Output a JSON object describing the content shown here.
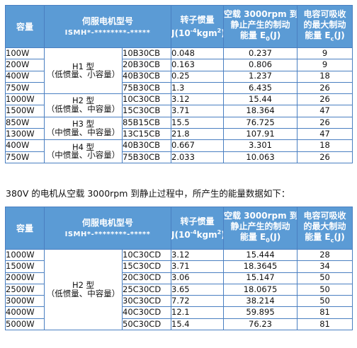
{
  "header": {
    "capacity": "容量",
    "model_title": "伺服电机型号",
    "model_code": "ISMH*-********-*****",
    "inertia_label": "转子惯量",
    "inertia_unit_prefix": "J(10",
    "inertia_exp": "-4",
    "inertia_unit_mid": "kgm",
    "inertia_exp2": "2",
    "inertia_unit_suffix": ")",
    "energy_line1": "空载 3000rpm 到",
    "energy_line2": "静止产生的制动",
    "energy_line3_prefix": "能量 E",
    "energy_sub": "0",
    "energy_line3_suffix": "(J)",
    "max_line1": "电容可吸收",
    "max_line2": "的最大制动",
    "max_line3_prefix": "能量 E",
    "max_sub": "c",
    "max_line3_suffix": "(J)"
  },
  "table1": {
    "series": [
      {
        "type": "H1 型",
        "desc": "（低惯量、小容量）"
      },
      {
        "type": "H2 型",
        "desc": "（低惯量、中容量）"
      },
      {
        "type": "H3 型",
        "desc": "（中惯量、中容量）"
      },
      {
        "type": "H4 型",
        "desc": "（中惯量、小容量）"
      }
    ],
    "rows": [
      {
        "capacity": "100W",
        "model": "10B30CB",
        "inertia": "0.048",
        "energy": "0.237",
        "max": "9"
      },
      {
        "capacity": "200W",
        "model": "20B30CB",
        "inertia": "0.163",
        "energy": "0.806",
        "max": "9"
      },
      {
        "capacity": "400W",
        "model": "40B30CB",
        "inertia": "0.25",
        "energy": "1.237",
        "max": "18"
      },
      {
        "capacity": "750W",
        "model": "75B30CB",
        "inertia": "1.3",
        "energy": "6.435",
        "max": "26"
      },
      {
        "capacity": "1000W",
        "model": "10C30CB",
        "inertia": "3.12",
        "energy": "15.44",
        "max": "26"
      },
      {
        "capacity": "1500W",
        "model": "15C30CB",
        "inertia": "3.71",
        "energy": "18.364",
        "max": "47"
      },
      {
        "capacity": "850W",
        "model": "85B15CB",
        "inertia": "15.5",
        "energy": "76.725",
        "max": "26"
      },
      {
        "capacity": "1300W",
        "model": "13C15CB",
        "inertia": "21.8",
        "energy": "107.91",
        "max": "47"
      },
      {
        "capacity": "400W",
        "model": "40B30CB",
        "inertia": "0.667",
        "energy": "3.301",
        "max": "18"
      },
      {
        "capacity": "750W",
        "model": "75B30CB",
        "inertia": "2.033",
        "energy": "10.063",
        "max": "26"
      }
    ]
  },
  "caption": "380V 的电机从空载 3000rpm 到静止过程中，所产生的能量数据如下：",
  "table2": {
    "series": [
      {
        "type": "H2 型",
        "desc": "（低惯量、中容量）"
      }
    ],
    "rows": [
      {
        "capacity": "1000W",
        "model": "10C30CD",
        "inertia": "3.12",
        "energy": "15.444",
        "max": "28"
      },
      {
        "capacity": "1500W",
        "model": "15C30CD",
        "inertia": "3.71",
        "energy": "18.3645",
        "max": "34"
      },
      {
        "capacity": "2000W",
        "model": "20C30CD",
        "inertia": "3.06",
        "energy": "15.147",
        "max": "50"
      },
      {
        "capacity": "2500W",
        "model": "25C30CD",
        "inertia": "3.65",
        "energy": "18.0675",
        "max": "50"
      },
      {
        "capacity": "3000W",
        "model": "30C30CD",
        "inertia": "7.72",
        "energy": "38.214",
        "max": "50"
      },
      {
        "capacity": "4000W",
        "model": "40C30CD",
        "inertia": "12.1",
        "energy": "59.895",
        "max": "81"
      },
      {
        "capacity": "5000W",
        "model": "50C30CD",
        "inertia": "15.4",
        "energy": "76.23",
        "max": "81"
      }
    ]
  }
}
